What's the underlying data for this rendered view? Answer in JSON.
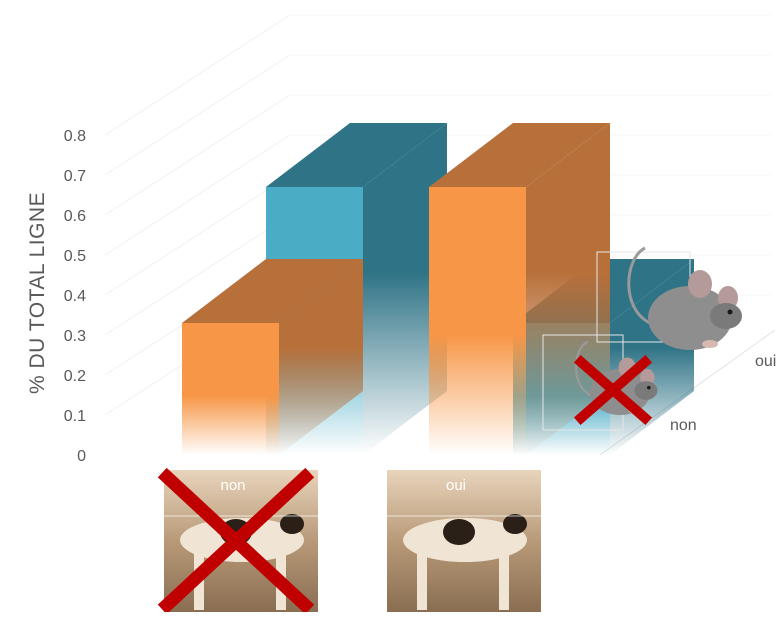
{
  "chart_data": {
    "type": "bar",
    "style": "3d-clustered",
    "ylabel": "% DU TOTAL LIGNE",
    "ylim": [
      0,
      0.8
    ],
    "yticks": [
      "0",
      "0.1",
      "0.2",
      "0.3",
      "0.4",
      "0.5",
      "0.6",
      "0.7",
      "0.8"
    ],
    "grid": true,
    "categories": [
      "non",
      "oui"
    ],
    "series": [
      {
        "name": "non",
        "color": "#f79646",
        "side_color": "#b8703a",
        "values": [
          0.33,
          0.67
        ]
      },
      {
        "name": "oui",
        "color": "#4bacc6",
        "side_color": "#2f7386",
        "values": [
          0.67,
          0.33
        ]
      }
    ],
    "depth_labels": [
      "non",
      "oui"
    ],
    "category_images": [
      {
        "label": "non",
        "image": "cat-photo",
        "crossed": true
      },
      {
        "label": "oui",
        "image": "cat-photo",
        "crossed": false
      }
    ],
    "series_images": [
      {
        "label": "non",
        "image": "mouse-photo",
        "crossed": true
      },
      {
        "label": "oui",
        "image": "mouse-photo",
        "crossed": false
      }
    ]
  }
}
